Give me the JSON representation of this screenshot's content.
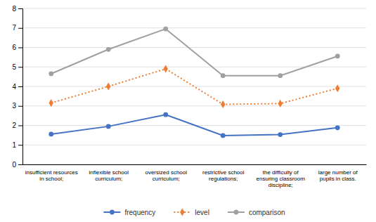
{
  "chart_data": {
    "type": "line",
    "categories": [
      "insufficient resources\nin school;",
      "inflexible school\ncurriculum;",
      "oversized school\ncurriculum;",
      "restrictive school\nregulations;",
      "the difficulty of\nensuring classroom\ndiscipline;",
      "large number of\npupils in class."
    ],
    "series": [
      {
        "name": "frequency",
        "color": "#4472C4",
        "marker": "circle",
        "line_style": "solid",
        "values": [
          1.55,
          1.95,
          2.55,
          1.48,
          1.53,
          1.88
        ]
      },
      {
        "name": "level",
        "color": "#ED7D31",
        "marker": "diamond",
        "line_style": "dotted",
        "values": [
          3.15,
          4.0,
          4.9,
          3.08,
          3.12,
          3.9
        ]
      },
      {
        "name": "comparison",
        "color": "#A0A0A0",
        "marker": "circle",
        "line_style": "solid",
        "values": [
          4.65,
          5.9,
          6.95,
          4.55,
          4.55,
          5.55
        ]
      }
    ],
    "ylim": [
      0,
      8
    ],
    "yticks": [
      0,
      1,
      2,
      3,
      4,
      5,
      6,
      7,
      8
    ],
    "grid": true,
    "legend": "bottom"
  }
}
